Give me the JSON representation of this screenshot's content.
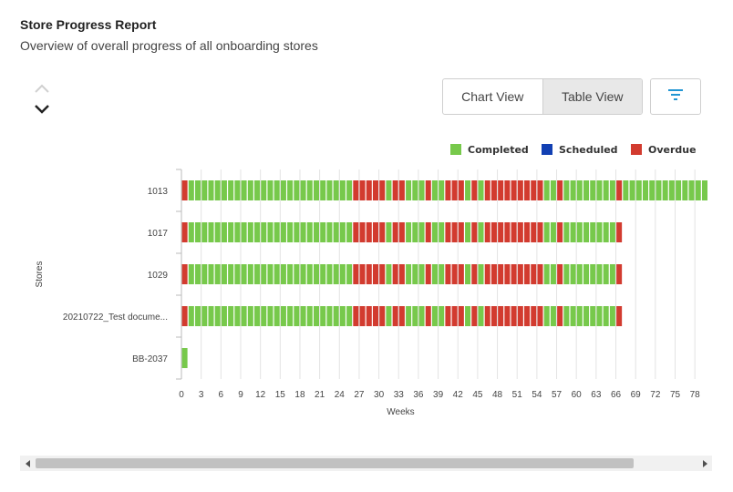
{
  "header": {
    "title": "Store Progress Report",
    "subtitle": "Overview of overall progress of all onboarding stores"
  },
  "controls": {
    "chart_view_label": "Chart View",
    "table_view_label": "Table View",
    "active_view": "Table View"
  },
  "icons": {
    "nav_up": "chevron-up-icon",
    "nav_down": "chevron-down-icon",
    "filter": "filter-icon",
    "scroll_left": "scroll-left-icon",
    "scroll_right": "scroll-right-icon"
  },
  "colors": {
    "completed": "#77c94b",
    "scheduled": "#1240b3",
    "overdue": "#d23b2f",
    "filter_icon": "#2196d3"
  },
  "chart_data": {
    "type": "bar",
    "orientation": "horizontal-stacked-segments",
    "xlabel": "Weeks",
    "ylabel": "Stores",
    "x_ticks": [
      0,
      3,
      6,
      9,
      12,
      15,
      18,
      21,
      24,
      27,
      30,
      33,
      36,
      39,
      42,
      45,
      48,
      51,
      54,
      57,
      60,
      63,
      66,
      69,
      72,
      75,
      78
    ],
    "xlim": [
      0,
      80
    ],
    "grid": "vertical",
    "legend": {
      "position": "top-right",
      "entries": [
        "Completed",
        "Scheduled",
        "Overdue"
      ]
    },
    "stores": [
      {
        "name": "1013",
        "segments": [
          {
            "start": 0,
            "end": 1,
            "status": "Overdue"
          },
          {
            "start": 1,
            "end": 26,
            "status": "Completed"
          },
          {
            "start": 26,
            "end": 31,
            "status": "Overdue"
          },
          {
            "start": 31,
            "end": 32,
            "status": "Completed"
          },
          {
            "start": 32,
            "end": 34,
            "status": "Overdue"
          },
          {
            "start": 34,
            "end": 37,
            "status": "Completed"
          },
          {
            "start": 37,
            "end": 38,
            "status": "Overdue"
          },
          {
            "start": 38,
            "end": 40,
            "status": "Completed"
          },
          {
            "start": 40,
            "end": 43,
            "status": "Overdue"
          },
          {
            "start": 43,
            "end": 44,
            "status": "Completed"
          },
          {
            "start": 44,
            "end": 45,
            "status": "Overdue"
          },
          {
            "start": 45,
            "end": 46,
            "status": "Completed"
          },
          {
            "start": 46,
            "end": 55,
            "status": "Overdue"
          },
          {
            "start": 55,
            "end": 57,
            "status": "Completed"
          },
          {
            "start": 57,
            "end": 58,
            "status": "Overdue"
          },
          {
            "start": 58,
            "end": 66,
            "status": "Completed"
          },
          {
            "start": 66,
            "end": 67,
            "status": "Overdue"
          },
          {
            "start": 67,
            "end": 80,
            "status": "Completed"
          }
        ]
      },
      {
        "name": "1017",
        "segments": [
          {
            "start": 0,
            "end": 1,
            "status": "Overdue"
          },
          {
            "start": 1,
            "end": 26,
            "status": "Completed"
          },
          {
            "start": 26,
            "end": 31,
            "status": "Overdue"
          },
          {
            "start": 31,
            "end": 32,
            "status": "Completed"
          },
          {
            "start": 32,
            "end": 34,
            "status": "Overdue"
          },
          {
            "start": 34,
            "end": 37,
            "status": "Completed"
          },
          {
            "start": 37,
            "end": 38,
            "status": "Overdue"
          },
          {
            "start": 38,
            "end": 40,
            "status": "Completed"
          },
          {
            "start": 40,
            "end": 43,
            "status": "Overdue"
          },
          {
            "start": 43,
            "end": 44,
            "status": "Completed"
          },
          {
            "start": 44,
            "end": 45,
            "status": "Overdue"
          },
          {
            "start": 45,
            "end": 46,
            "status": "Completed"
          },
          {
            "start": 46,
            "end": 55,
            "status": "Overdue"
          },
          {
            "start": 55,
            "end": 57,
            "status": "Completed"
          },
          {
            "start": 57,
            "end": 58,
            "status": "Overdue"
          },
          {
            "start": 58,
            "end": 66,
            "status": "Completed"
          },
          {
            "start": 66,
            "end": 67,
            "status": "Overdue"
          }
        ]
      },
      {
        "name": "1029",
        "segments": [
          {
            "start": 0,
            "end": 1,
            "status": "Overdue"
          },
          {
            "start": 1,
            "end": 26,
            "status": "Completed"
          },
          {
            "start": 26,
            "end": 31,
            "status": "Overdue"
          },
          {
            "start": 31,
            "end": 32,
            "status": "Completed"
          },
          {
            "start": 32,
            "end": 34,
            "status": "Overdue"
          },
          {
            "start": 34,
            "end": 37,
            "status": "Completed"
          },
          {
            "start": 37,
            "end": 38,
            "status": "Overdue"
          },
          {
            "start": 38,
            "end": 40,
            "status": "Completed"
          },
          {
            "start": 40,
            "end": 43,
            "status": "Overdue"
          },
          {
            "start": 43,
            "end": 44,
            "status": "Completed"
          },
          {
            "start": 44,
            "end": 45,
            "status": "Overdue"
          },
          {
            "start": 45,
            "end": 46,
            "status": "Completed"
          },
          {
            "start": 46,
            "end": 55,
            "status": "Overdue"
          },
          {
            "start": 55,
            "end": 57,
            "status": "Completed"
          },
          {
            "start": 57,
            "end": 58,
            "status": "Overdue"
          },
          {
            "start": 58,
            "end": 66,
            "status": "Completed"
          },
          {
            "start": 66,
            "end": 67,
            "status": "Overdue"
          }
        ]
      },
      {
        "name": "20210722_Test docume...",
        "segments": [
          {
            "start": 0,
            "end": 1,
            "status": "Overdue"
          },
          {
            "start": 1,
            "end": 26,
            "status": "Completed"
          },
          {
            "start": 26,
            "end": 31,
            "status": "Overdue"
          },
          {
            "start": 31,
            "end": 32,
            "status": "Completed"
          },
          {
            "start": 32,
            "end": 34,
            "status": "Overdue"
          },
          {
            "start": 34,
            "end": 37,
            "status": "Completed"
          },
          {
            "start": 37,
            "end": 38,
            "status": "Overdue"
          },
          {
            "start": 38,
            "end": 40,
            "status": "Completed"
          },
          {
            "start": 40,
            "end": 43,
            "status": "Overdue"
          },
          {
            "start": 43,
            "end": 44,
            "status": "Completed"
          },
          {
            "start": 44,
            "end": 45,
            "status": "Overdue"
          },
          {
            "start": 45,
            "end": 46,
            "status": "Completed"
          },
          {
            "start": 46,
            "end": 55,
            "status": "Overdue"
          },
          {
            "start": 55,
            "end": 57,
            "status": "Completed"
          },
          {
            "start": 57,
            "end": 58,
            "status": "Overdue"
          },
          {
            "start": 58,
            "end": 66,
            "status": "Completed"
          },
          {
            "start": 66,
            "end": 67,
            "status": "Overdue"
          }
        ]
      },
      {
        "name": "BB-2037",
        "segments": [
          {
            "start": 0,
            "end": 1,
            "status": "Completed"
          }
        ]
      }
    ]
  }
}
